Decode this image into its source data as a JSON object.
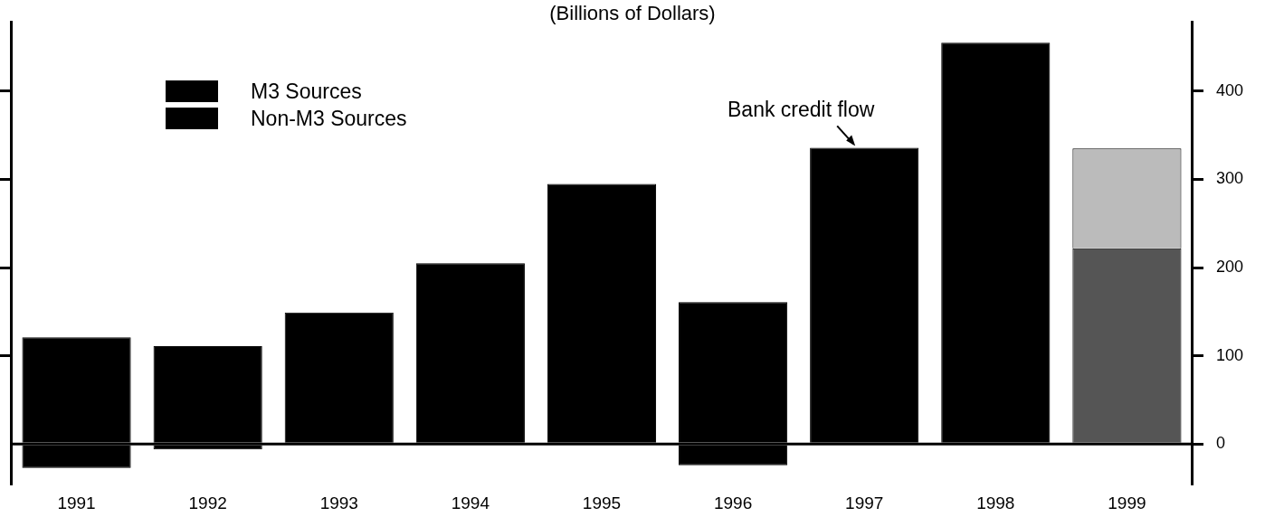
{
  "chart_data": {
    "type": "bar",
    "subtitle": "(Billions of Dollars)",
    "categories": [
      "1991",
      "1992",
      "1993",
      "1994",
      "1995",
      "1996",
      "1997",
      "1998",
      "1999"
    ],
    "series": [
      {
        "name": "M3 Sources",
        "color": "#000000",
        "colors": [
          "#000000",
          "#000000",
          "#000000",
          "#000000",
          "#000000",
          "#000000",
          "#000000",
          "#000000",
          "#555555"
        ],
        "values": [
          121,
          111,
          149,
          205,
          295,
          161,
          336,
          455,
          222
        ]
      },
      {
        "name": "Non-M3 Sources",
        "color": "#000000",
        "colors": [
          "#000000",
          "#000000",
          "#000000",
          "#000000",
          "#000000",
          "#000000",
          "#000000",
          "#000000",
          "#bbbbbb"
        ],
        "values": [
          -27,
          -6,
          null,
          null,
          null,
          -24,
          null,
          null,
          113
        ]
      }
    ],
    "stacked": true,
    "ylim": [
      -45,
      478
    ],
    "yticks": [
      0,
      100,
      200,
      300,
      400
    ],
    "ref_lines": [
      {
        "axis": "y",
        "value": 0,
        "color": "#000000"
      }
    ],
    "annotations": [
      {
        "text": "Bank credit flow",
        "x": "1997",
        "y": 336
      }
    ],
    "legend": "top left",
    "grid": false
  }
}
